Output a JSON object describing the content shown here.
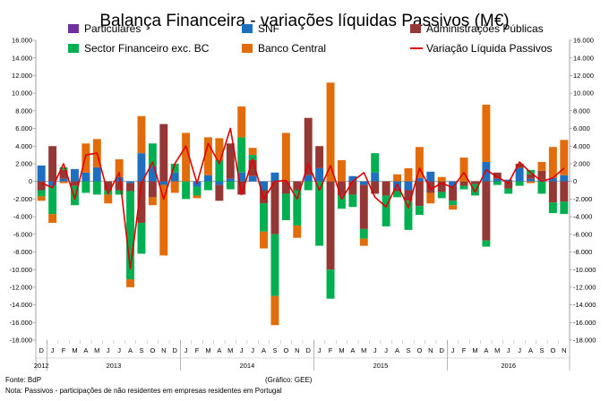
{
  "chart_data": {
    "type": "bar",
    "subtype": "stacked-bar-with-line",
    "title": "Balança Financeira - variações líquidas Passivos (M€)",
    "ylim": [
      -18000,
      16000
    ],
    "y_ticks": [
      "16.000",
      "14.000",
      "12.000",
      "10.000",
      "8.000",
      "6.000",
      "4.000",
      "2.000",
      "0",
      "-2.000",
      "-4.000",
      "-6.000",
      "-8.000",
      "-10.000",
      "-12.000",
      "-14.000",
      "-16.000",
      "-18.000"
    ],
    "y_tick_values": [
      16000,
      14000,
      12000,
      10000,
      8000,
      6000,
      4000,
      2000,
      0,
      -2000,
      -4000,
      -6000,
      -8000,
      -10000,
      -12000,
      -14000,
      -16000,
      -18000
    ],
    "gridlines": false,
    "legend_position": "top",
    "categories": [
      "D",
      "J",
      "F",
      "M",
      "A",
      "M",
      "J",
      "J",
      "A",
      "S",
      "O",
      "N",
      "D",
      "J",
      "F",
      "M",
      "A",
      "M",
      "J",
      "J",
      "A",
      "S",
      "O",
      "N",
      "D",
      "J",
      "F",
      "M",
      "A",
      "M",
      "J",
      "J",
      "A",
      "S",
      "O",
      "N",
      "D",
      "J",
      "F",
      "M",
      "A",
      "M",
      "J",
      "J",
      "A",
      "S",
      "O",
      "N"
    ],
    "years": [
      {
        "label": "2012",
        "start": 0,
        "count": 1
      },
      {
        "label": "2013",
        "start": 1,
        "count": 12
      },
      {
        "label": "2014",
        "start": 13,
        "count": 12
      },
      {
        "label": "2015",
        "start": 25,
        "count": 12
      },
      {
        "label": "2016",
        "start": 37,
        "count": 11
      }
    ],
    "series": [
      {
        "name": "Particulares",
        "color": "#7030A0",
        "type": "bar",
        "values": [
          0,
          0,
          0,
          0,
          0,
          0,
          0,
          0,
          0,
          0,
          0,
          0,
          0,
          0,
          0,
          0,
          0,
          0,
          0,
          0,
          0,
          0,
          0,
          0,
          0,
          0,
          0,
          0,
          0,
          0,
          0,
          0,
          0,
          0,
          0,
          0,
          0,
          0,
          0,
          0,
          0,
          0,
          0,
          0,
          0,
          0,
          0,
          0
        ]
      },
      {
        "name": "SNF",
        "color": "#1F6FC0",
        "type": "bar",
        "values": [
          1800,
          -500,
          300,
          1400,
          1000,
          1600,
          0,
          500,
          -200,
          3200,
          1700,
          -400,
          1000,
          0,
          -600,
          700,
          -400,
          300,
          1000,
          600,
          -1000,
          1000,
          0,
          0,
          700,
          1500,
          0,
          0,
          600,
          -400,
          1000,
          0,
          -800,
          -1000,
          400,
          1100,
          0,
          -600,
          0,
          0,
          2200,
          300,
          200,
          1500,
          300,
          200,
          400,
          700
        ]
      },
      {
        "name": "Administrações Públicas",
        "color": "#953734",
        "type": "bar",
        "values": [
          -1000,
          4000,
          1000,
          -500,
          0,
          0,
          -1000,
          -1000,
          -900,
          -4700,
          -1800,
          6500,
          0,
          0,
          0,
          0,
          -1800,
          4000,
          -1500,
          1800,
          -1500,
          -6000,
          -1400,
          -1000,
          6500,
          2500,
          -10000,
          -1600,
          -1500,
          -5000,
          -1400,
          -1600,
          -300,
          -1200,
          -2800,
          -1300,
          -1200,
          -1600,
          -500,
          -300,
          -6700,
          700,
          -800,
          500,
          500,
          1000,
          -2400,
          -2300
        ]
      },
      {
        "name": "Sector Financeiro exc. BC",
        "color": "#00B050",
        "type": "bar",
        "values": [
          -700,
          -3200,
          300,
          -2200,
          -1300,
          -1500,
          -500,
          -500,
          -10000,
          -3500,
          2600,
          0,
          1000,
          -2000,
          -1000,
          -1000,
          2400,
          -900,
          4000,
          600,
          -3200,
          -7000,
          -3000,
          -4000,
          -1000,
          -7300,
          -3300,
          -1500,
          -1400,
          -1100,
          2200,
          -3500,
          -700,
          -3300,
          -1000,
          0,
          -700,
          -500,
          -400,
          -1300,
          -700,
          -400,
          -600,
          -500,
          500,
          -1400,
          -1200,
          -1400
        ]
      },
      {
        "name": "Banco Central",
        "color": "#E36C0A",
        "type": "bar",
        "values": [
          -500,
          -1000,
          -200,
          0,
          3300,
          3200,
          -1000,
          2000,
          -900,
          4200,
          -900,
          -8000,
          -1300,
          5500,
          -300,
          4300,
          2500,
          0,
          3500,
          800,
          -1900,
          -3300,
          5500,
          -1400,
          0,
          0,
          11200,
          2400,
          0,
          -800,
          0,
          0,
          800,
          1500,
          3500,
          -1200,
          500,
          -500,
          2700,
          0,
          6500,
          0,
          0,
          0,
          -200,
          1000,
          3500,
          4000
        ]
      },
      {
        "name": "Variação Líquida Passivos",
        "color": "#E00000",
        "type": "line",
        "values": [
          -200,
          -700,
          2000,
          -2000,
          3000,
          3200,
          -1400,
          1000,
          -9900,
          -200,
          2200,
          -2000,
          2000,
          4000,
          -200,
          4300,
          2000,
          6000,
          -1500,
          2500,
          -2000,
          0,
          100,
          -2000,
          2000,
          -1000,
          1800,
          -2000,
          0,
          1000,
          -1800,
          -2900,
          -300,
          -3000,
          1500,
          -900,
          -200,
          -700,
          1000,
          -1200,
          1300,
          500,
          -200,
          2200,
          1000,
          0,
          400,
          1500
        ]
      }
    ]
  },
  "notes": {
    "source": "Fonte: BdP",
    "credit": "(Gráfico: GEE)",
    "footnote": "Nota: Passivos - participações de não residentes em empresas residentes em Portugal"
  }
}
